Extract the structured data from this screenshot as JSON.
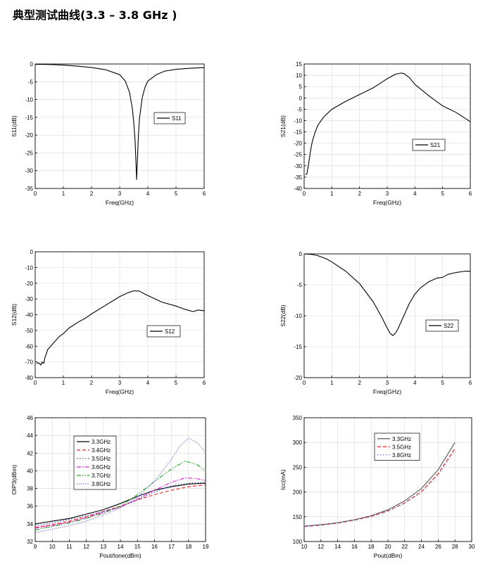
{
  "page": {
    "title": "典型测试曲线(3.3 – 3.8 GHz )"
  },
  "chart_data": [
    {
      "id": "s11",
      "type": "line",
      "title": "",
      "xlabel": "Freq(GHz)",
      "ylabel": "S11(dB)",
      "xlim": [
        0,
        6
      ],
      "ylim": [
        -35,
        0
      ],
      "xticks": [
        0,
        1,
        2,
        3,
        4,
        5,
        6
      ],
      "yticks": [
        0,
        -5,
        -10,
        -15,
        -20,
        -25,
        -30,
        -35
      ],
      "legend": {
        "position": "middle-right",
        "entries": [
          "S11"
        ]
      },
      "series": [
        {
          "name": "S11",
          "color": "#000000",
          "dash": "",
          "x": [
            0,
            0.5,
            1,
            1.5,
            2,
            2.5,
            3,
            3.2,
            3.35,
            3.45,
            3.5,
            3.55,
            3.58,
            3.6,
            3.63,
            3.66,
            3.7,
            3.8,
            3.9,
            4,
            4.3,
            4.6,
            5,
            5.5,
            6
          ],
          "y": [
            -0.1,
            -0.15,
            -0.3,
            -0.6,
            -1.0,
            -1.6,
            -3.0,
            -4.8,
            -8.0,
            -12.5,
            -16.5,
            -22.0,
            -28.0,
            -32.5,
            -27.0,
            -21.0,
            -15.5,
            -9.5,
            -6.5,
            -4.8,
            -3.0,
            -2.0,
            -1.5,
            -1.2,
            -1.0
          ]
        }
      ]
    },
    {
      "id": "s21",
      "type": "line",
      "title": "",
      "xlabel": "Freq(GHz)",
      "ylabel": "S21(dB)",
      "xlim": [
        0,
        6
      ],
      "ylim": [
        -40,
        15
      ],
      "xticks": [
        0,
        1,
        2,
        3,
        4,
        5,
        6
      ],
      "yticks": [
        15,
        10,
        5,
        0,
        -5,
        -10,
        -15,
        -20,
        -25,
        -30,
        -35,
        -40
      ],
      "legend": {
        "position": "middle-right",
        "entries": [
          "S21"
        ]
      },
      "series": [
        {
          "name": "S21",
          "color": "#000000",
          "dash": "",
          "x": [
            0.05,
            0.1,
            0.15,
            0.2,
            0.25,
            0.3,
            0.4,
            0.5,
            0.7,
            1.0,
            1.5,
            2.0,
            2.5,
            3.0,
            3.3,
            3.5,
            3.6,
            3.8,
            4.0,
            4.5,
            5.0,
            5.5,
            6.0
          ],
          "y": [
            -34,
            -33.5,
            -30,
            -26,
            -22,
            -19,
            -15,
            -12,
            -8.5,
            -5,
            -1.5,
            1.5,
            4.5,
            8.5,
            10.5,
            11,
            10.8,
            9,
            6,
            1,
            -3.5,
            -6.5,
            -10.5
          ]
        }
      ]
    },
    {
      "id": "s12",
      "type": "line",
      "title": "",
      "xlabel": "Freq(GHz)",
      "ylabel": "S12(dB)",
      "xlim": [
        0,
        6
      ],
      "ylim": [
        -80,
        0
      ],
      "xticks": [
        0,
        1,
        2,
        3,
        4,
        5,
        6
      ],
      "yticks": [
        0,
        -10,
        -20,
        -30,
        -40,
        -50,
        -60,
        -70,
        -80
      ],
      "legend": {
        "position": "lower-right",
        "entries": [
          "S12"
        ]
      },
      "series": [
        {
          "name": "S12",
          "color": "#000000",
          "dash": "",
          "x": [
            0.05,
            0.1,
            0.15,
            0.2,
            0.25,
            0.3,
            0.35,
            0.45,
            0.55,
            0.7,
            0.85,
            1.0,
            1.2,
            1.5,
            1.8,
            2.0,
            2.5,
            3.0,
            3.3,
            3.5,
            3.7,
            3.9,
            4.2,
            4.5,
            5.0,
            5.3,
            5.6,
            5.8,
            6.0
          ],
          "y": [
            -71,
            -70.5,
            -71,
            -72,
            -70,
            -71,
            -67,
            -62,
            -60,
            -57,
            -54,
            -52,
            -48.5,
            -45,
            -42,
            -39.5,
            -34,
            -28.5,
            -26,
            -24.8,
            -25,
            -27,
            -29.5,
            -32,
            -34.5,
            -36.5,
            -38,
            -37,
            -37.5
          ]
        }
      ]
    },
    {
      "id": "s22",
      "type": "line",
      "title": "",
      "xlabel": "Freq(GHz)",
      "ylabel": "S22(dB)",
      "xlim": [
        0,
        6
      ],
      "ylim": [
        -20,
        0
      ],
      "xticks": [
        0,
        1,
        2,
        3,
        4,
        5,
        6
      ],
      "yticks": [
        0,
        -5,
        -10,
        -15,
        -20
      ],
      "legend": {
        "position": "middle-right",
        "entries": [
          "S22"
        ]
      },
      "series": [
        {
          "name": "S22",
          "color": "#000000",
          "dash": "",
          "x": [
            0,
            0.3,
            0.5,
            0.8,
            1.0,
            1.5,
            2.0,
            2.5,
            2.8,
            3.0,
            3.1,
            3.2,
            3.3,
            3.4,
            3.6,
            3.8,
            4.0,
            4.2,
            4.5,
            4.8,
            5.0,
            5.2,
            5.5,
            5.8,
            6.0
          ],
          "y": [
            0,
            -0.1,
            -0.3,
            -0.8,
            -1.3,
            -2.8,
            -4.8,
            -7.8,
            -10.2,
            -12.0,
            -12.8,
            -13.2,
            -12.8,
            -12.0,
            -10.0,
            -8.0,
            -6.5,
            -5.5,
            -4.5,
            -3.9,
            -3.8,
            -3.3,
            -3.0,
            -2.8,
            -2.8
          ]
        }
      ]
    },
    {
      "id": "oip3",
      "type": "line",
      "title": "",
      "xlabel": "Pout/tone(dBm)",
      "ylabel": "OIP3(dBm)",
      "xlim": [
        9,
        19
      ],
      "ylim": [
        32,
        46
      ],
      "xticks": [
        9,
        10,
        11,
        12,
        13,
        14,
        15,
        16,
        17,
        18,
        19
      ],
      "yticks": [
        46,
        44,
        42,
        40,
        38,
        36,
        34,
        32
      ],
      "legend": {
        "position": "top-left",
        "entries": [
          "3.3GHz",
          "3.4GHz",
          "3.5GHz",
          "3.6GHz",
          "3.7GHz",
          "3.8GHz"
        ]
      },
      "series": [
        {
          "name": "3.3GHz",
          "color": "#000000",
          "dash": "",
          "x": [
            9,
            10,
            11,
            12,
            13,
            14,
            15,
            16,
            17,
            18,
            19
          ],
          "y": [
            34.0,
            34.3,
            34.6,
            35.1,
            35.6,
            36.3,
            37.1,
            37.8,
            38.2,
            38.5,
            38.6
          ]
        },
        {
          "name": "3.4GHz",
          "color": "#e8241f",
          "dash": "5,3",
          "x": [
            9,
            10,
            11,
            12,
            13,
            14,
            15,
            16,
            17,
            18,
            19
          ],
          "y": [
            33.6,
            33.9,
            34.3,
            34.8,
            35.4,
            36.0,
            36.7,
            37.3,
            37.8,
            38.2,
            38.4
          ]
        },
        {
          "name": "3.5GHz",
          "color": "#3b3bd6",
          "dash": "1.5,2.5",
          "x": [
            9,
            10,
            11,
            12,
            13,
            14,
            15,
            16,
            17,
            18,
            19
          ],
          "y": [
            33.8,
            34.1,
            34.5,
            34.9,
            35.4,
            35.9,
            36.7,
            37.6,
            38.3,
            38.6,
            38.7
          ]
        },
        {
          "name": "3.6GHz",
          "color": "#e020d0",
          "dash": "6,2,1.5,2",
          "x": [
            9,
            10,
            11,
            12,
            13,
            14,
            15,
            16,
            17,
            17.8,
            18.5,
            19
          ],
          "y": [
            33.5,
            33.8,
            34.2,
            34.7,
            35.3,
            35.9,
            36.8,
            37.8,
            38.7,
            39.2,
            39.1,
            38.9
          ]
        },
        {
          "name": "3.7GHz",
          "color": "#22aa22",
          "dash": "6,2,1.5,2,1.5,2",
          "x": [
            9,
            10,
            11,
            12,
            13,
            14,
            15,
            16,
            17,
            17.8,
            18.5,
            19
          ],
          "y": [
            33.3,
            33.7,
            34.1,
            34.6,
            35.2,
            36.0,
            37.3,
            38.8,
            40.2,
            41.1,
            40.7,
            40.0
          ]
        },
        {
          "name": "3.8GHz",
          "color": "#8080e0",
          "dash": "1.5,1.5",
          "x": [
            9,
            10,
            11,
            12,
            13,
            14,
            15,
            16,
            17,
            17.5,
            18,
            18.5,
            19
          ],
          "y": [
            33.0,
            33.4,
            33.8,
            34.3,
            35.0,
            35.8,
            37.0,
            38.8,
            41.3,
            42.8,
            43.7,
            43.2,
            42.1
          ]
        }
      ]
    },
    {
      "id": "icc",
      "type": "line",
      "title": "",
      "xlabel": "Pout(dBm)",
      "ylabel": "Icc(mA)",
      "xlim": [
        10,
        30
      ],
      "ylim": [
        100,
        350
      ],
      "xticks": [
        10,
        12,
        14,
        16,
        18,
        20,
        22,
        24,
        26,
        28,
        30
      ],
      "yticks": [
        350,
        300,
        250,
        200,
        150,
        100
      ],
      "legend": {
        "position": "top-center",
        "entries": [
          "3.3GHz",
          "3.5GHz",
          "3.8GHz"
        ]
      },
      "series": [
        {
          "name": "3.3GHz",
          "color": "#555555",
          "dash": "",
          "x": [
            10,
            12,
            14,
            16,
            18,
            20,
            22,
            24,
            26,
            28
          ],
          "y": [
            131,
            134,
            138,
            144,
            152,
            164,
            182,
            207,
            245,
            300
          ]
        },
        {
          "name": "3.5GHz",
          "color": "#e8241f",
          "dash": "5,3",
          "x": [
            10,
            12,
            14,
            16,
            18,
            20,
            22,
            24,
            26,
            28
          ],
          "y": [
            130,
            133,
            137,
            143,
            151,
            162,
            178,
            201,
            237,
            288
          ]
        },
        {
          "name": "3.8GHz",
          "color": "#7878d8",
          "dash": "1.5,2.5",
          "x": [
            10,
            12,
            14,
            16,
            18,
            20,
            22,
            24,
            26,
            28
          ],
          "y": [
            130,
            133,
            137,
            143,
            150,
            161,
            177,
            199,
            234,
            284
          ]
        }
      ]
    }
  ]
}
